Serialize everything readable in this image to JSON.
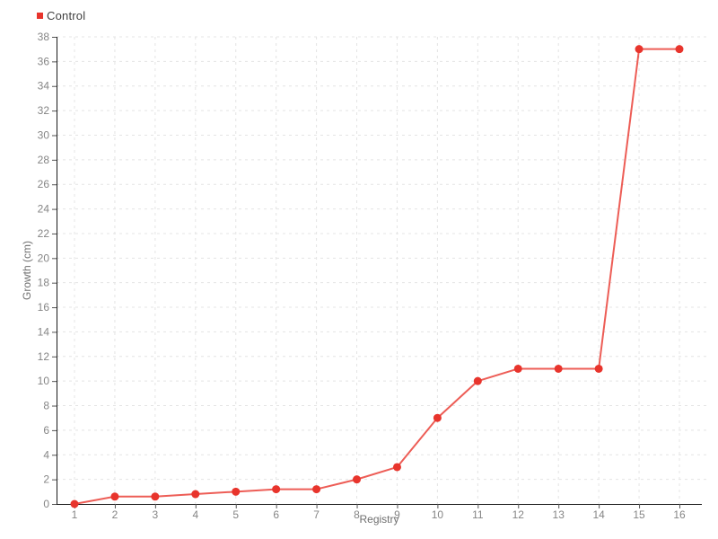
{
  "chart_data": {
    "type": "line",
    "title": "",
    "xlabel": "Registry",
    "ylabel": "Growth (cm)",
    "categories": [
      "1",
      "2",
      "3",
      "4",
      "5",
      "6",
      "7",
      "8",
      "9",
      "10",
      "11",
      "12",
      "13",
      "14",
      "15",
      "16"
    ],
    "series": [
      {
        "name": "Control",
        "color": "#e8342c",
        "marker": "circle",
        "values": [
          0,
          0.6,
          0.6,
          0.8,
          1,
          1.2,
          1.2,
          2,
          3,
          7,
          10,
          11,
          11,
          11,
          37,
          37
        ]
      }
    ],
    "ylim": [
      0,
      38
    ],
    "ytick_step": 2,
    "grid": "dashed",
    "legend_position": "top-left",
    "colors": {
      "background": "#ffffff",
      "grid": "#e4e4e4",
      "axis": "#1a1a1a",
      "tick": "#555555",
      "tick_label": "#858585",
      "axis_title": "#6e6e6e",
      "legend_text": "#3f3f3f"
    }
  }
}
